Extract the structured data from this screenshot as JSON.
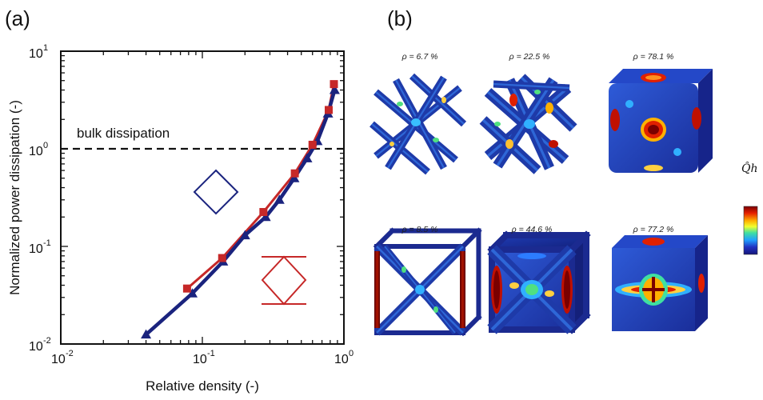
{
  "panel_a_label": "(a)",
  "panel_b_label": "(b)",
  "chart_data": {
    "type": "line",
    "xlabel": "Relative density (-)",
    "ylabel": "Normalized power dissipation (-)",
    "xscale": "log",
    "yscale": "log",
    "xlim": [
      0.01,
      1
    ],
    "ylim": [
      0.01,
      10
    ],
    "x_ticks": [
      {
        "base": "10",
        "exp": "-2"
      },
      {
        "base": "10",
        "exp": "-1"
      },
      {
        "base": "10",
        "exp": "0"
      }
    ],
    "y_ticks": [
      {
        "base": "10",
        "exp": "-2"
      },
      {
        "base": "10",
        "exp": "-1"
      },
      {
        "base": "10",
        "exp": "0"
      },
      {
        "base": "10",
        "exp": "1"
      }
    ],
    "grid": false,
    "reference_line": {
      "y": 1.0,
      "label": "bulk dissipation",
      "style": "dashed"
    },
    "series": [
      {
        "color": "#1a237e",
        "marker": "triangle",
        "x": [
          0.04,
          0.085,
          0.14,
          0.2,
          0.28,
          0.35,
          0.446,
          0.55,
          0.65,
          0.772,
          0.86
        ],
        "y": [
          0.0125,
          0.033,
          0.07,
          0.13,
          0.2,
          0.3,
          0.5,
          0.8,
          1.2,
          2.3,
          4.0
        ]
      },
      {
        "color": "#c62828",
        "marker": "square",
        "x": [
          0.078,
          0.138,
          0.27,
          0.45,
          0.6,
          0.781,
          0.85
        ],
        "y": [
          0.037,
          0.076,
          0.225,
          0.56,
          1.1,
          2.5,
          4.6
        ]
      }
    ]
  },
  "structures": [
    {
      "label": "ρ = 6.7 %",
      "type": "octet-struts"
    },
    {
      "label": "ρ = 22.5 %",
      "type": "octet-dense"
    },
    {
      "label": "ρ = 78.1 %",
      "type": "octet-solid"
    },
    {
      "label": "ρ = 8.5 %",
      "type": "cube-struts"
    },
    {
      "label": "ρ = 44.6 %",
      "type": "cube-dense"
    },
    {
      "label": "ρ = 77.2 %",
      "type": "cube-solid"
    }
  ],
  "colorbar": {
    "label": "Q̂h",
    "colors": [
      "#7a0000",
      "#e62000",
      "#ffb000",
      "#f0ff30",
      "#40e0a0",
      "#20a0ff",
      "#2030c0",
      "#15157a"
    ]
  },
  "icons": {
    "legend_blue": "diamond-cell-icon",
    "legend_red": "diamond-capped-cell-icon"
  }
}
